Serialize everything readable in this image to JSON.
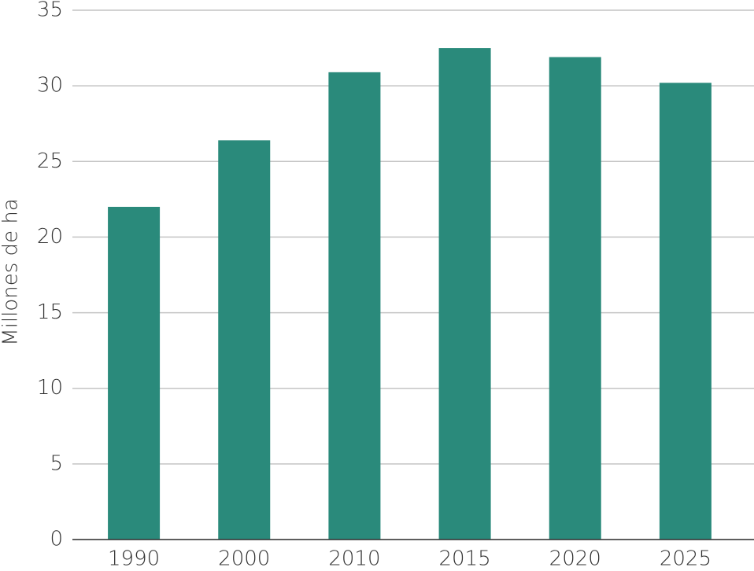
{
  "chart_data": {
    "type": "bar",
    "y_label": "Millones de ha",
    "categories": [
      "1990",
      "2000",
      "2010",
      "2015",
      "2020",
      "2025"
    ],
    "values": [
      22.0,
      26.4,
      30.9,
      32.5,
      31.9,
      30.2
    ],
    "color": "#2a8a7b",
    "ylim": [
      0,
      35
    ],
    "yticks": [
      0,
      5,
      10,
      15,
      20,
      25,
      30,
      35
    ],
    "grid": true
  }
}
